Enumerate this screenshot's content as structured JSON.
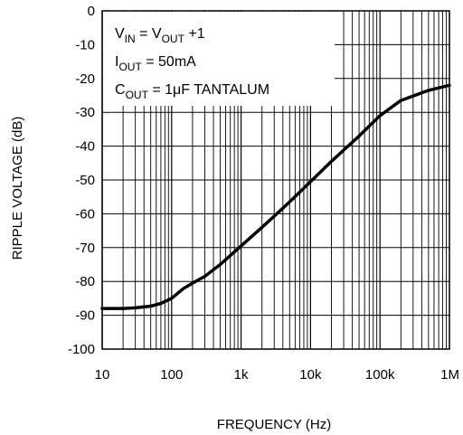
{
  "chart_data": {
    "type": "line",
    "xlabel": "FREQUENCY (Hz)",
    "ylabel": "RIPPLE VOLTAGE (dB)",
    "xscale": "log",
    "xlim": [
      10,
      1000000
    ],
    "ylim": [
      -100,
      0
    ],
    "x_ticks": [
      10,
      100,
      1000,
      10000,
      100000,
      1000000
    ],
    "x_tick_labels": [
      "10",
      "100",
      "1k",
      "10k",
      "100k",
      "1M"
    ],
    "y_ticks": [
      0,
      -10,
      -20,
      -30,
      -40,
      -50,
      -60,
      -70,
      -80,
      -90,
      -100
    ],
    "y_tick_labels": [
      "0",
      "-10",
      "-20",
      "-30",
      "-40",
      "-50",
      "-60",
      "-70",
      "-80",
      "-90",
      "-100"
    ],
    "grid": true,
    "annotations": [
      {
        "main": "V",
        "sub": "IN",
        "rest": " = V",
        "sub2": "OUT",
        "rest2": " +1"
      },
      {
        "main": "I",
        "sub": "OUT",
        "rest": " = 50mA",
        "sub2": "",
        "rest2": ""
      },
      {
        "main": "C",
        "sub": "OUT",
        "rest": " = 1μF TANTALUM",
        "sub2": "",
        "rest2": ""
      }
    ],
    "series": [
      {
        "x": [
          10,
          20,
          30,
          50,
          70,
          100,
          150,
          200,
          300,
          500,
          1000,
          2000,
          5000,
          10000,
          20000,
          50000,
          100000,
          200000,
          500000,
          1000000
        ],
        "y": [
          -88,
          -88,
          -87.8,
          -87.3,
          -86.5,
          -85,
          -82,
          -80.5,
          -78.5,
          -75,
          -69.5,
          -64,
          -56.5,
          -50.5,
          -44.5,
          -37,
          -31,
          -26.5,
          -23.5,
          -22
        ]
      }
    ]
  }
}
